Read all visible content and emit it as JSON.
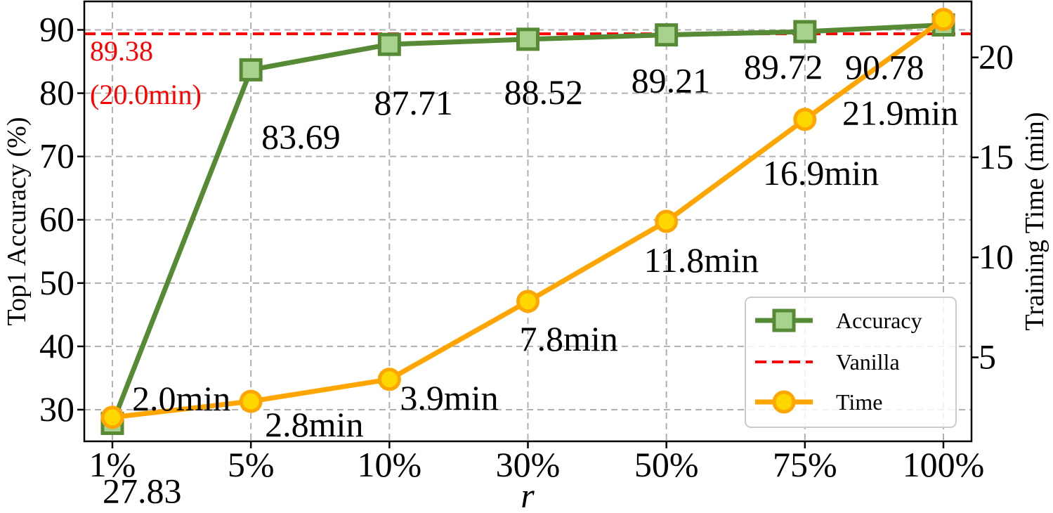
{
  "chart_data": {
    "type": "line",
    "categories": [
      "1%",
      "5%",
      "10%",
      "30%",
      "50%",
      "75%",
      "100%"
    ],
    "xlabel": "r",
    "series": [
      {
        "name": "Accuracy",
        "axis": "left",
        "values": [
          27.83,
          83.69,
          87.71,
          88.52,
          89.21,
          89.72,
          90.78
        ],
        "labels": [
          "27.83",
          "83.69",
          "87.71",
          "88.52",
          "89.21",
          "89.72",
          "90.78"
        ],
        "color": "#568a35",
        "marker_fill": "#a9d18e",
        "marker": "square"
      },
      {
        "name": "Vanilla",
        "axis": "left",
        "value": 89.38,
        "color": "#ff0000",
        "style": "dashed",
        "label_lines": [
          "89.38",
          "(20.0min)"
        ]
      },
      {
        "name": "Time",
        "axis": "right",
        "values": [
          2.0,
          2.8,
          3.9,
          7.8,
          11.8,
          16.9,
          21.9
        ],
        "labels": [
          "2.0min",
          "2.8min",
          "3.9min",
          "7.8min",
          "11.8min",
          "16.9min",
          "21.9min"
        ],
        "color": "#ffa500",
        "marker_fill": "#ffd700",
        "marker": "circle"
      }
    ],
    "y_left": {
      "label": "Top1 Accuracy (%)",
      "ylim": [
        25,
        94.5
      ],
      "ticks": [
        30,
        40,
        50,
        60,
        70,
        80,
        90
      ]
    },
    "y_right": {
      "label": "Training Time (min)",
      "ylim": [
        0.8,
        22.8
      ],
      "ticks": [
        5,
        10,
        15,
        20
      ]
    },
    "grid": true,
    "legend_position": "lower-right"
  }
}
